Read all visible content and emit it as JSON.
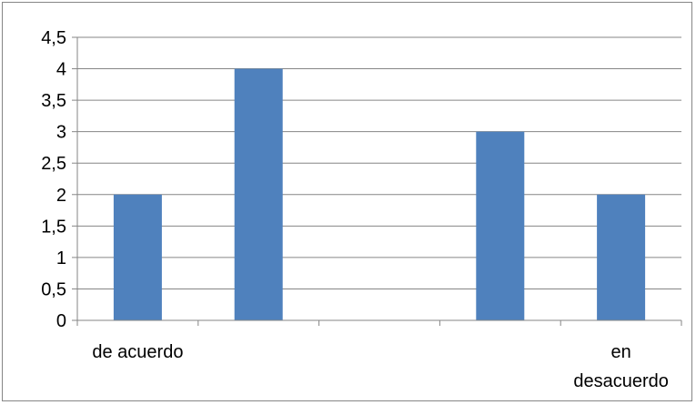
{
  "chart_data": {
    "type": "bar",
    "categories": [
      "de acuerdo",
      "",
      "",
      "",
      "en desacuerdo"
    ],
    "values": [
      2,
      4,
      0,
      3,
      2
    ],
    "ylim": [
      0,
      4.5
    ],
    "yticks": [
      "0",
      "0,5",
      "1",
      "1,5",
      "2",
      "2,5",
      "3",
      "3,5",
      "4",
      "4,5"
    ],
    "grid": true,
    "legend": "none",
    "bar_color": "#4f81bd",
    "grid_color": "#868686"
  }
}
